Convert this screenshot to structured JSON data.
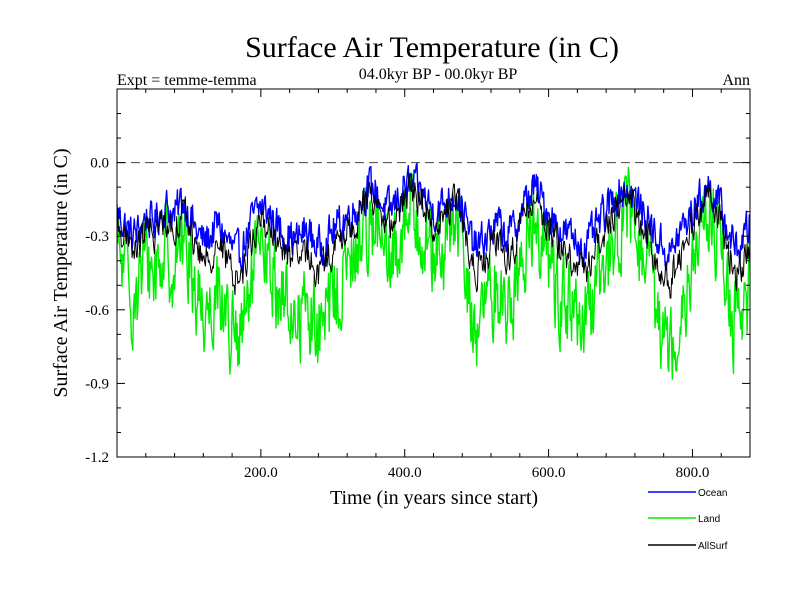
{
  "chart_data": {
    "type": "line",
    "title": "Surface Air Temperature (in C)",
    "subtitle": "04.0kyr BP - 00.0kyr BP",
    "left_label": "Expt = temme-temma",
    "right_label": "Ann",
    "xlabel": "Time (in years since start)",
    "ylabel": "Surface Air Temperature (in C)",
    "xlim": [
      0,
      880
    ],
    "ylim": [
      -1.2,
      0.3
    ],
    "x_ticks": [
      200,
      400,
      600,
      800
    ],
    "x_tick_labels": [
      "200.0",
      "400.0",
      "600.0",
      "800.0"
    ],
    "y_ticks": [
      -1.2,
      -0.9,
      -0.6,
      -0.3,
      0.0
    ],
    "y_tick_labels": [
      "-1.2",
      "-0.9",
      "-0.6",
      "-0.3",
      "0.0"
    ],
    "reference_line": 0.0,
    "legend_position": "bottom-right",
    "anchor_step": 10,
    "series": [
      {
        "name": "Ocean",
        "color": "#0000ff",
        "noise": 0.07,
        "anchors": [
          -0.2,
          -0.25,
          -0.3,
          -0.28,
          -0.22,
          -0.25,
          -0.2,
          -0.18,
          -0.22,
          -0.15,
          -0.2,
          -0.28,
          -0.32,
          -0.3,
          -0.25,
          -0.3,
          -0.35,
          -0.38,
          -0.3,
          -0.22,
          -0.18,
          -0.2,
          -0.25,
          -0.28,
          -0.3,
          -0.32,
          -0.28,
          -0.3,
          -0.35,
          -0.32,
          -0.28,
          -0.25,
          -0.22,
          -0.2,
          -0.15,
          -0.1,
          -0.12,
          -0.18,
          -0.2,
          -0.15,
          -0.1,
          -0.08,
          -0.12,
          -0.15,
          -0.2,
          -0.18,
          -0.15,
          -0.12,
          -0.18,
          -0.3,
          -0.35,
          -0.32,
          -0.28,
          -0.25,
          -0.3,
          -0.28,
          -0.22,
          -0.15,
          -0.1,
          -0.15,
          -0.2,
          -0.25,
          -0.28,
          -0.3,
          -0.32,
          -0.35,
          -0.3,
          -0.25,
          -0.2,
          -0.15,
          -0.12,
          -0.1,
          -0.15,
          -0.2,
          -0.25,
          -0.3,
          -0.35,
          -0.38,
          -0.3,
          -0.25,
          -0.2,
          -0.15,
          -0.1,
          -0.12,
          -0.2,
          -0.28,
          -0.35,
          -0.32,
          -0.25
        ]
      },
      {
        "name": "Land",
        "color": "#00ee00",
        "noise": 0.16,
        "anchors": [
          -0.35,
          -0.45,
          -0.55,
          -0.5,
          -0.4,
          -0.45,
          -0.4,
          -0.35,
          -0.42,
          -0.3,
          -0.38,
          -0.52,
          -0.6,
          -0.58,
          -0.5,
          -0.6,
          -0.7,
          -0.75,
          -0.62,
          -0.45,
          -0.38,
          -0.42,
          -0.5,
          -0.55,
          -0.6,
          -0.65,
          -0.58,
          -0.62,
          -0.7,
          -0.65,
          -0.55,
          -0.5,
          -0.45,
          -0.4,
          -0.3,
          -0.22,
          -0.25,
          -0.38,
          -0.45,
          -0.32,
          -0.22,
          -0.15,
          -0.25,
          -0.3,
          -0.4,
          -0.38,
          -0.3,
          -0.22,
          -0.35,
          -0.58,
          -0.68,
          -0.62,
          -0.55,
          -0.5,
          -0.6,
          -0.55,
          -0.45,
          -0.3,
          -0.2,
          -0.3,
          -0.4,
          -0.5,
          -0.55,
          -0.6,
          -0.65,
          -0.7,
          -0.6,
          -0.5,
          -0.4,
          -0.3,
          -0.25,
          -0.2,
          -0.3,
          -0.4,
          -0.5,
          -0.6,
          -0.68,
          -0.75,
          -0.62,
          -0.5,
          -0.4,
          -0.3,
          -0.2,
          -0.25,
          -0.4,
          -0.55,
          -0.68,
          -0.65,
          -0.5
        ]
      },
      {
        "name": "AllSurf",
        "color": "#000000",
        "noise": 0.06,
        "anchors": [
          -0.25,
          -0.3,
          -0.37,
          -0.34,
          -0.27,
          -0.3,
          -0.26,
          -0.23,
          -0.28,
          -0.19,
          -0.25,
          -0.35,
          -0.4,
          -0.38,
          -0.32,
          -0.38,
          -0.45,
          -0.48,
          -0.39,
          -0.29,
          -0.24,
          -0.26,
          -0.32,
          -0.35,
          -0.38,
          -0.41,
          -0.37,
          -0.39,
          -0.45,
          -0.41,
          -0.36,
          -0.32,
          -0.28,
          -0.26,
          -0.19,
          -0.13,
          -0.15,
          -0.24,
          -0.27,
          -0.2,
          -0.13,
          -0.1,
          -0.16,
          -0.19,
          -0.26,
          -0.24,
          -0.19,
          -0.15,
          -0.23,
          -0.38,
          -0.44,
          -0.41,
          -0.36,
          -0.33,
          -0.39,
          -0.36,
          -0.29,
          -0.2,
          -0.13,
          -0.2,
          -0.26,
          -0.32,
          -0.36,
          -0.39,
          -0.42,
          -0.45,
          -0.39,
          -0.32,
          -0.26,
          -0.2,
          -0.16,
          -0.13,
          -0.2,
          -0.26,
          -0.32,
          -0.39,
          -0.45,
          -0.49,
          -0.39,
          -0.32,
          -0.26,
          -0.2,
          -0.13,
          -0.16,
          -0.26,
          -0.36,
          -0.45,
          -0.42,
          -0.32
        ]
      }
    ]
  }
}
